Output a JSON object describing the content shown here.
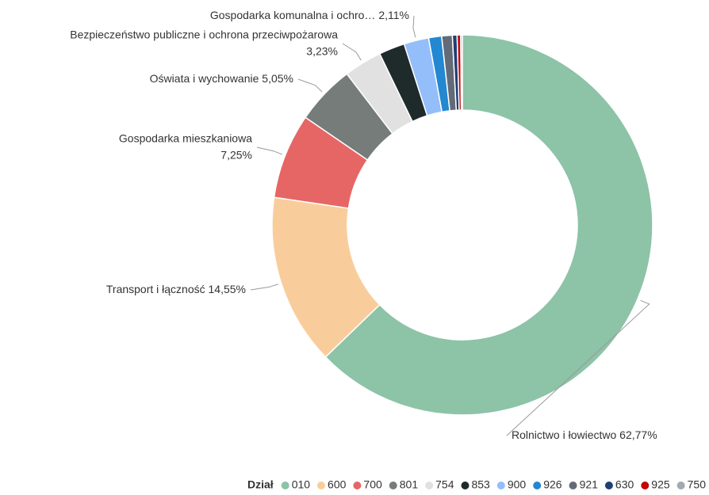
{
  "chart_data": {
    "type": "donut",
    "categories": [
      "010",
      "600",
      "700",
      "801",
      "754",
      "853",
      "900",
      "926",
      "921",
      "630",
      "925",
      "750"
    ],
    "labels": [
      "Rolnictwo i łowiectwo",
      "Transport i łączność",
      "Gospodarka mieszkaniowa",
      "Oświata i wychowanie",
      "Bezpieczeństwo publiczne i ochrona przeciwpożarowa",
      null,
      "Gospodarka komunalna i ochro…",
      null,
      null,
      null,
      null,
      null
    ],
    "values": [
      62.77,
      14.55,
      7.25,
      5.05,
      3.23,
      2.2,
      2.11,
      1.1,
      0.9,
      0.4,
      0.3,
      0.14
    ],
    "value_labels": [
      "62,77%",
      "14,55%",
      "7,25%",
      "5,05%",
      "3,23%",
      null,
      "2,11%",
      null,
      null,
      null,
      null,
      null
    ],
    "colors": [
      "#8dc3a7",
      "#f9cd9b",
      "#e66665",
      "#757c79",
      "#e1e1e1",
      "#1f2a2a",
      "#93bef9",
      "#2387d1",
      "#636b79",
      "#233e73",
      "#c20707",
      "#a2a9b2"
    ],
    "legend_title": "Dział"
  }
}
